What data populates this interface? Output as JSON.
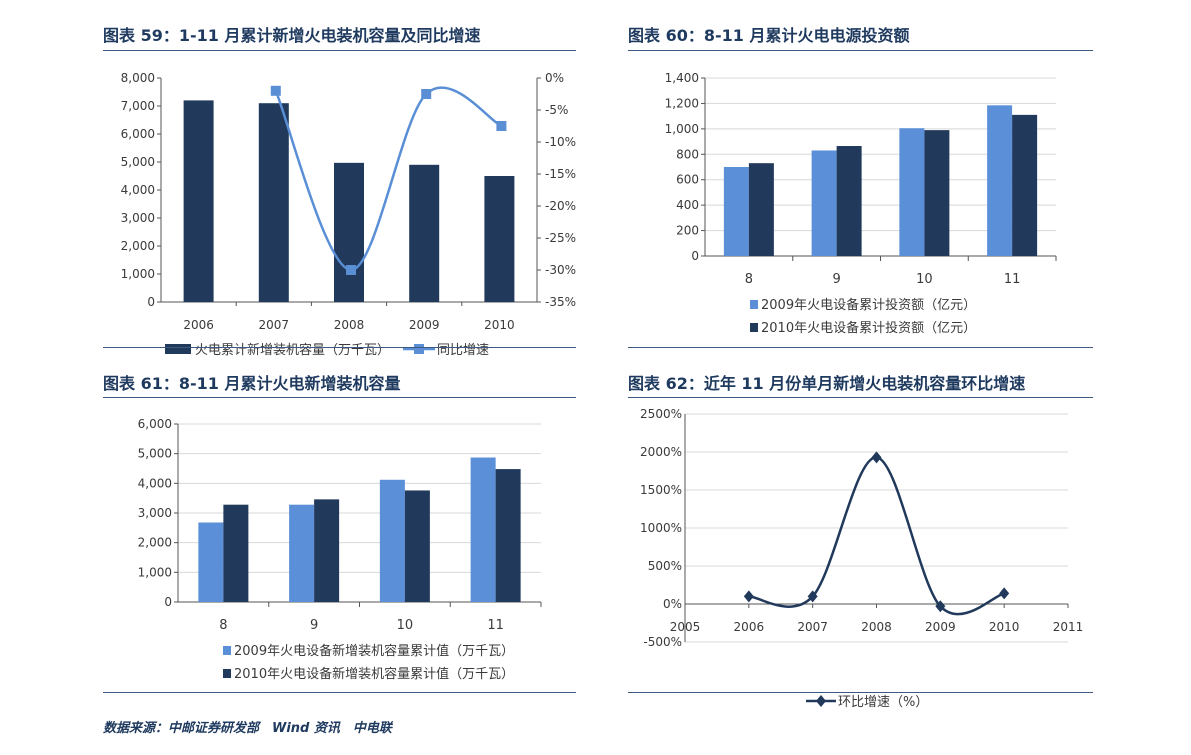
{
  "source": "数据来源：中邮证券研发部　Wind 资讯　中电联",
  "chart_data": [
    {
      "id": "c59",
      "type": "bar",
      "title": "图表 59：1-11 月累计新增火电装机容量及同比增速",
      "categories": [
        "2006",
        "2007",
        "2008",
        "2009",
        "2010"
      ],
      "series": [
        {
          "name": "火电累计新增装机容量（万千瓦）",
          "type": "bar",
          "color": "#213a5c",
          "values": [
            7200,
            7100,
            4970,
            4900,
            4500
          ]
        },
        {
          "name": "同比增速",
          "type": "line",
          "axis": "right",
          "color": "#5a8fd6",
          "values": [
            null,
            -2,
            -30,
            -2.5,
            -7.5
          ]
        }
      ],
      "yleft": {
        "min": 0,
        "max": 8000,
        "ticks": [
          "0",
          "1,000",
          "2,000",
          "3,000",
          "4,000",
          "5,000",
          "6,000",
          "7,000",
          "8,000"
        ]
      },
      "yright": {
        "min": -35,
        "max": 0,
        "ticks": [
          "-35%",
          "-30%",
          "-25%",
          "-20%",
          "-15%",
          "-10%",
          "-5%",
          "0%"
        ]
      },
      "legend": "bottom"
    },
    {
      "id": "c60",
      "type": "bar",
      "title": "图表 60：8-11 月累计火电电源投资额",
      "categories": [
        "8",
        "9",
        "10",
        "11"
      ],
      "series": [
        {
          "name": "2009年火电设备累计投资额（亿元）",
          "color": "#5b8fd8",
          "values": [
            700,
            830,
            1005,
            1185
          ]
        },
        {
          "name": "2010年火电设备累计投资额（亿元）",
          "color": "#213a5c",
          "values": [
            730,
            865,
            990,
            1110
          ]
        }
      ],
      "yleft": {
        "min": 0,
        "max": 1400,
        "ticks": [
          "0",
          "200",
          "400",
          "600",
          "800",
          "1,000",
          "1,200",
          "1,400"
        ]
      },
      "legend": "bottom"
    },
    {
      "id": "c61",
      "type": "bar",
      "title": "图表 61：8-11 月累计火电新增装机容量",
      "categories": [
        "8",
        "9",
        "10",
        "11"
      ],
      "series": [
        {
          "name": "2009年火电设备新增装机容量累计值（万千瓦）",
          "color": "#5b8fd8",
          "values": [
            2680,
            3280,
            4120,
            4870
          ]
        },
        {
          "name": "2010年火电设备新增装机容量累计值（万千瓦）",
          "color": "#213a5c",
          "values": [
            3280,
            3460,
            3760,
            4480
          ]
        }
      ],
      "yleft": {
        "min": 0,
        "max": 6000,
        "ticks": [
          "0",
          "1,000",
          "2,000",
          "3,000",
          "4,000",
          "5,000",
          "6,000"
        ]
      },
      "legend": "bottom"
    },
    {
      "id": "c62",
      "type": "line",
      "title": "图表 62：近年 11 月份单月新增火电装机容量环比增速",
      "x": [
        2006,
        2007,
        2008,
        2009,
        2010
      ],
      "xticks": [
        "2005",
        "2006",
        "2007",
        "2008",
        "2009",
        "2010",
        "2011"
      ],
      "series": [
        {
          "name": "环比增速（%）",
          "color": "#213a5c",
          "values": [
            100,
            100,
            1930,
            -30,
            140
          ]
        }
      ],
      "yleft": {
        "min": -500,
        "max": 2500,
        "ticks": [
          "-500%",
          "0%",
          "500%",
          "1000%",
          "1500%",
          "2000%",
          "2500%"
        ]
      },
      "legend": "bottom"
    }
  ]
}
